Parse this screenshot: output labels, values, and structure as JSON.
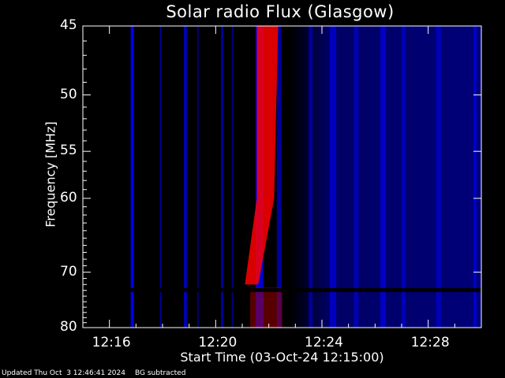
{
  "chart_data": {
    "type": "heatmap",
    "title": "Solar radio Flux (Glasgow)",
    "xlabel": "Start Time (03-Oct-24 12:15:00)",
    "ylabel": "Frequency [MHz]",
    "x_ticks": [
      "12:16",
      "12:20",
      "12:24",
      "12:28"
    ],
    "x_tick_minutes": [
      16,
      20,
      24,
      28
    ],
    "xlim_minutes": [
      15.0,
      30.0
    ],
    "y_ticks": [
      45,
      50,
      55,
      60,
      70,
      80
    ],
    "ylim": [
      45,
      80
    ],
    "y_scale": "reciprocal",
    "colormap": [
      "#000000",
      "#0000ff",
      "#ff0000"
    ],
    "grid": false
  },
  "footer": {
    "updated": "Updated Thu Oct  3 12:46:41 2024",
    "note": "BG subtracted"
  }
}
